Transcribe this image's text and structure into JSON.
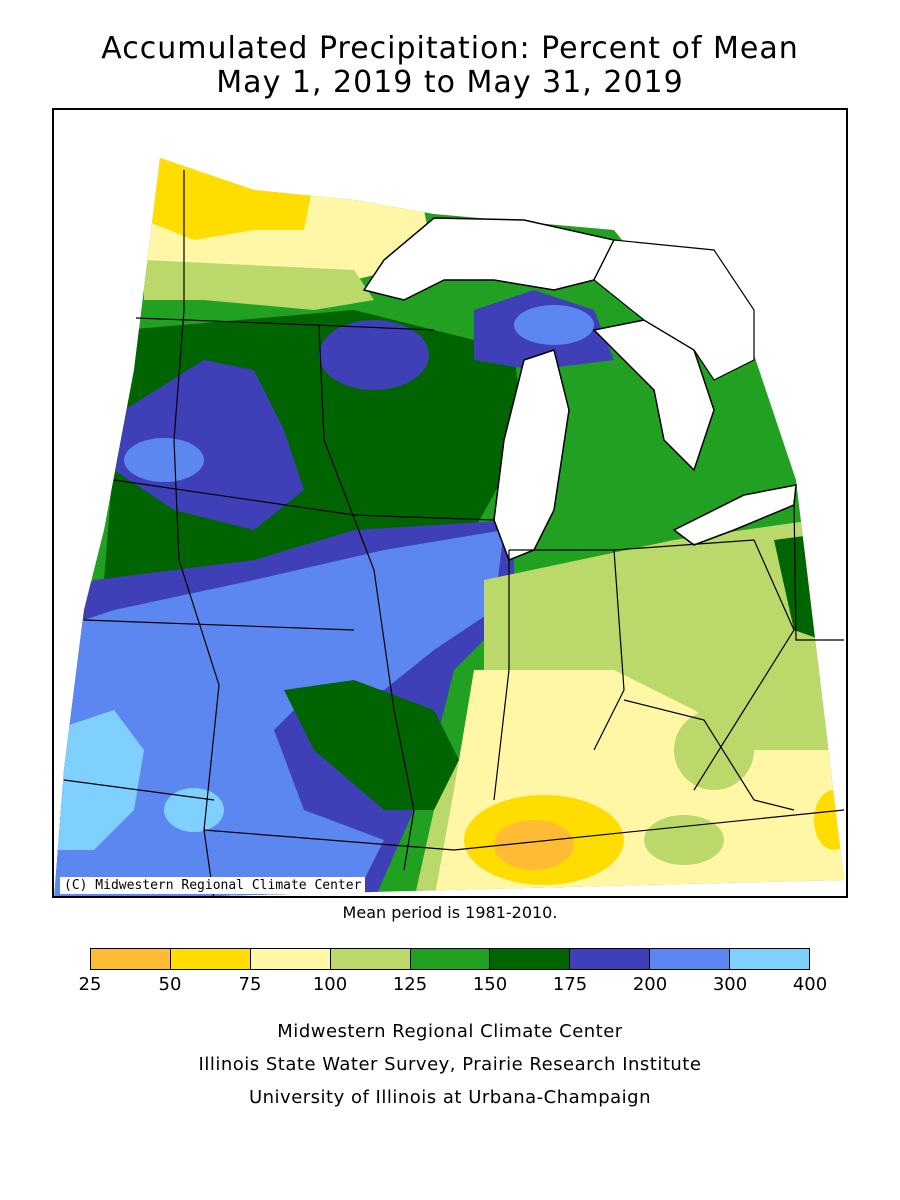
{
  "title": {
    "line1": "Accumulated Precipitation: Percent of Mean",
    "line2": "May 1, 2019 to May 31, 2019"
  },
  "map": {
    "copyright": "(C) Midwestern Regional Climate Center"
  },
  "mean_period": "Mean period is 1981-2010.",
  "legend": {
    "ticks": [
      "25",
      "50",
      "75",
      "100",
      "125",
      "150",
      "175",
      "200",
      "300",
      "400"
    ],
    "colors": [
      "#FFBB33",
      "#FFDD00",
      "#FFF7A6",
      "#BBD96B",
      "#22A022",
      "#006400",
      "#3F3FB8",
      "#5C87F0",
      "#7FCFFF"
    ]
  },
  "credits": {
    "line1": "Midwestern Regional Climate Center",
    "line2": "Illinois State Water Survey, Prairie Research Institute",
    "line3": "University of Illinois at Urbana-Champaign"
  }
}
